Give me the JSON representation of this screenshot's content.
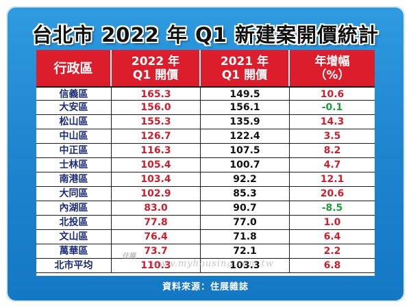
{
  "title": "台北市 2022 年 Q1 新建案開價統計",
  "headers": {
    "district": "行政區",
    "price2022_line1": "2022 年",
    "price2022_line2": "Q1 開價",
    "price2021_line1": "2021 年",
    "price2021_line2": "Q1 開價",
    "growth_line1": "年增幅",
    "growth_line2": "（%）"
  },
  "rows": [
    {
      "district": "信義區",
      "price2022": "165.3",
      "price2021": "149.5",
      "growth": "10.6",
      "sign": "pos"
    },
    {
      "district": "大安區",
      "price2022": "156.0",
      "price2021": "156.1",
      "growth": "-0.1",
      "sign": "neg"
    },
    {
      "district": "松山區",
      "price2022": "155.3",
      "price2021": "135.9",
      "growth": "14.3",
      "sign": "pos"
    },
    {
      "district": "中山區",
      "price2022": "126.7",
      "price2021": "122.4",
      "growth": "3.5",
      "sign": "pos"
    },
    {
      "district": "中正區",
      "price2022": "116.3",
      "price2021": "107.5",
      "growth": "8.2",
      "sign": "pos"
    },
    {
      "district": "士林區",
      "price2022": "105.4",
      "price2021": "100.7",
      "growth": "4.7",
      "sign": "pos"
    },
    {
      "district": "南港區",
      "price2022": "103.4",
      "price2021": "92.2",
      "growth": "12.1",
      "sign": "pos"
    },
    {
      "district": "大同區",
      "price2022": "102.9",
      "price2021": "85.3",
      "growth": "20.6",
      "sign": "pos"
    },
    {
      "district": "內湖區",
      "price2022": "83.0",
      "price2021": "90.7",
      "growth": "-8.5",
      "sign": "neg"
    },
    {
      "district": "北投區",
      "price2022": "77.8",
      "price2021": "77.0",
      "growth": "1.0",
      "sign": "pos"
    },
    {
      "district": "文山區",
      "price2022": "76.4",
      "price2021": "71.8",
      "growth": "6.4",
      "sign": "pos"
    },
    {
      "district": "萬華區",
      "price2022": "73.7",
      "price2021": "72.1",
      "growth": "2.2",
      "sign": "pos"
    },
    {
      "district": "北市平均",
      "price2022": "110.3",
      "price2021": "103.3",
      "growth": "6.8",
      "sign": "pos"
    }
  ],
  "watermark": "www.myhousing.com.tw",
  "logo_text": "住展",
  "source": "資料來源：住展雜誌",
  "colors": {
    "frame_blue": "#1f86d0",
    "header_red": "#dc1e2c",
    "positive_red": "#c8202d",
    "negative_green": "#1f9a3a",
    "district_navy": "#1a2a78"
  }
}
